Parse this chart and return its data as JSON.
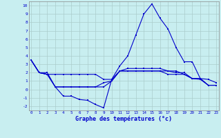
{
  "title": "Graphe des températures (°c)",
  "background_color": "#c8eef0",
  "line_color": "#0000cc",
  "grid_color": "#aacccc",
  "x_ticks": [
    0,
    1,
    2,
    3,
    4,
    5,
    6,
    7,
    8,
    9,
    10,
    11,
    12,
    13,
    14,
    15,
    16,
    17,
    18,
    19,
    20,
    21,
    22,
    23
  ],
  "ylim": [
    -2.5,
    10.5
  ],
  "xlim": [
    -0.3,
    23.3
  ],
  "yticks": [
    -2,
    -1,
    0,
    1,
    2,
    3,
    4,
    5,
    6,
    7,
    8,
    9,
    10
  ],
  "line1_x": [
    0,
    1,
    2,
    3,
    4,
    5,
    6,
    7,
    8,
    9,
    10,
    11,
    12,
    13,
    14,
    15,
    16,
    17,
    18,
    19,
    20,
    21,
    22,
    23
  ],
  "line1_y": [
    3.5,
    2.0,
    2.0,
    0.3,
    -0.8,
    -0.8,
    -1.2,
    -1.3,
    -1.8,
    -2.2,
    1.2,
    2.8,
    4.0,
    6.5,
    9.0,
    10.2,
    8.5,
    7.2,
    5.0,
    3.3,
    3.3,
    1.3,
    1.2,
    0.8
  ],
  "line2_x": [
    0,
    1,
    2,
    3,
    4,
    5,
    6,
    7,
    8,
    9,
    10,
    11,
    12,
    13,
    14,
    15,
    16,
    17,
    18,
    19,
    20,
    21,
    22,
    23
  ],
  "line2_y": [
    3.5,
    2.0,
    1.8,
    1.8,
    1.8,
    1.8,
    1.8,
    1.8,
    1.8,
    1.2,
    1.2,
    2.2,
    2.5,
    2.5,
    2.5,
    2.5,
    2.5,
    2.2,
    2.0,
    2.0,
    1.3,
    1.2,
    0.5,
    0.5
  ],
  "line3_x": [
    0,
    1,
    2,
    3,
    4,
    5,
    6,
    7,
    8,
    9,
    10,
    11,
    12,
    13,
    14,
    15,
    16,
    17,
    18,
    19,
    20,
    21,
    22,
    23
  ],
  "line3_y": [
    3.5,
    2.0,
    1.8,
    0.3,
    0.3,
    0.3,
    0.3,
    0.3,
    0.3,
    0.8,
    1.0,
    2.2,
    2.2,
    2.2,
    2.2,
    2.2,
    2.2,
    1.8,
    1.8,
    1.8,
    1.3,
    1.3,
    0.5,
    0.5
  ],
  "line4_x": [
    0,
    1,
    2,
    3,
    4,
    5,
    6,
    7,
    8,
    9,
    10,
    11,
    12,
    13,
    14,
    15,
    16,
    17,
    18,
    19,
    20,
    21,
    22,
    23
  ],
  "line4_y": [
    3.5,
    2.0,
    1.8,
    0.3,
    0.3,
    0.3,
    0.3,
    0.3,
    0.3,
    0.3,
    1.0,
    2.2,
    2.2,
    2.2,
    2.2,
    2.2,
    2.2,
    2.2,
    2.2,
    1.8,
    1.3,
    1.3,
    0.5,
    0.5
  ]
}
